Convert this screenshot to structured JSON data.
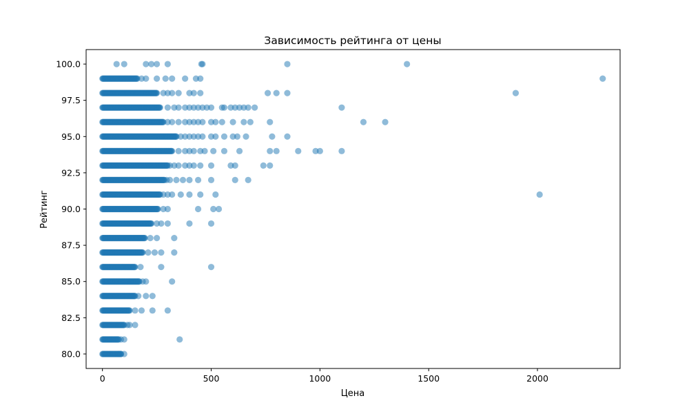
{
  "chart_data": {
    "type": "scatter",
    "title": "Зависимость рейтинга от цены",
    "xlabel": "Цена",
    "ylabel": "Рейтинг",
    "xlim": [
      -75,
      2380
    ],
    "ylim": [
      79.0,
      101.0
    ],
    "xticks": [
      0,
      500,
      1000,
      1500,
      2000
    ],
    "yticks": [
      80.0,
      82.5,
      85.0,
      87.5,
      90.0,
      92.5,
      95.0,
      97.5,
      100.0
    ],
    "grid": false,
    "legend": "none",
    "marker_color": "#1f77b4",
    "marker_alpha": 0.5,
    "bands": [
      {
        "y": 80,
        "max_price": 85
      },
      {
        "y": 81,
        "max_price": 75
      },
      {
        "y": 82,
        "max_price": 100
      },
      {
        "y": 83,
        "max_price": 125
      },
      {
        "y": 84,
        "max_price": 150
      },
      {
        "y": 85,
        "max_price": 170
      },
      {
        "y": 86,
        "max_price": 150
      },
      {
        "y": 87,
        "max_price": 185
      },
      {
        "y": 88,
        "max_price": 195
      },
      {
        "y": 89,
        "max_price": 225
      },
      {
        "y": 90,
        "max_price": 255
      },
      {
        "y": 91,
        "max_price": 265
      },
      {
        "y": 92,
        "max_price": 285
      },
      {
        "y": 93,
        "max_price": 300
      },
      {
        "y": 94,
        "max_price": 320
      },
      {
        "y": 95,
        "max_price": 340
      },
      {
        "y": 96,
        "max_price": 280
      },
      {
        "y": 97,
        "max_price": 265
      },
      {
        "y": 98,
        "max_price": 250
      },
      {
        "y": 99,
        "max_price": 160
      },
      {
        "y": 100,
        "max_price": 0
      }
    ],
    "points": [
      {
        "x": 1400,
        "y": 100
      },
      {
        "x": 850,
        "y": 100
      },
      {
        "x": 460,
        "y": 100
      },
      {
        "x": 455,
        "y": 100
      },
      {
        "x": 300,
        "y": 100
      },
      {
        "x": 250,
        "y": 100
      },
      {
        "x": 225,
        "y": 100
      },
      {
        "x": 200,
        "y": 100
      },
      {
        "x": 100,
        "y": 100
      },
      {
        "x": 65,
        "y": 100
      },
      {
        "x": 2300,
        "y": 99
      },
      {
        "x": 450,
        "y": 99
      },
      {
        "x": 430,
        "y": 99
      },
      {
        "x": 380,
        "y": 99
      },
      {
        "x": 320,
        "y": 99
      },
      {
        "x": 290,
        "y": 99
      },
      {
        "x": 250,
        "y": 99
      },
      {
        "x": 200,
        "y": 99
      },
      {
        "x": 180,
        "y": 99
      },
      {
        "x": 1900,
        "y": 98
      },
      {
        "x": 850,
        "y": 98
      },
      {
        "x": 800,
        "y": 98
      },
      {
        "x": 760,
        "y": 98
      },
      {
        "x": 450,
        "y": 98
      },
      {
        "x": 420,
        "y": 98
      },
      {
        "x": 400,
        "y": 98
      },
      {
        "x": 350,
        "y": 98
      },
      {
        "x": 320,
        "y": 98
      },
      {
        "x": 300,
        "y": 98
      },
      {
        "x": 280,
        "y": 98
      },
      {
        "x": 1100,
        "y": 97
      },
      {
        "x": 700,
        "y": 97
      },
      {
        "x": 670,
        "y": 97
      },
      {
        "x": 650,
        "y": 97
      },
      {
        "x": 630,
        "y": 97
      },
      {
        "x": 610,
        "y": 97
      },
      {
        "x": 590,
        "y": 97
      },
      {
        "x": 560,
        "y": 97
      },
      {
        "x": 550,
        "y": 97
      },
      {
        "x": 500,
        "y": 97
      },
      {
        "x": 480,
        "y": 97
      },
      {
        "x": 460,
        "y": 97
      },
      {
        "x": 440,
        "y": 97
      },
      {
        "x": 420,
        "y": 97
      },
      {
        "x": 400,
        "y": 97
      },
      {
        "x": 380,
        "y": 97
      },
      {
        "x": 350,
        "y": 97
      },
      {
        "x": 330,
        "y": 97
      },
      {
        "x": 300,
        "y": 97
      },
      {
        "x": 1300,
        "y": 96
      },
      {
        "x": 1200,
        "y": 96
      },
      {
        "x": 770,
        "y": 96
      },
      {
        "x": 680,
        "y": 96
      },
      {
        "x": 650,
        "y": 96
      },
      {
        "x": 600,
        "y": 96
      },
      {
        "x": 550,
        "y": 96
      },
      {
        "x": 520,
        "y": 96
      },
      {
        "x": 500,
        "y": 96
      },
      {
        "x": 460,
        "y": 96
      },
      {
        "x": 440,
        "y": 96
      },
      {
        "x": 420,
        "y": 96
      },
      {
        "x": 400,
        "y": 96
      },
      {
        "x": 380,
        "y": 96
      },
      {
        "x": 350,
        "y": 96
      },
      {
        "x": 320,
        "y": 96
      },
      {
        "x": 300,
        "y": 96
      },
      {
        "x": 850,
        "y": 95
      },
      {
        "x": 780,
        "y": 95
      },
      {
        "x": 660,
        "y": 95
      },
      {
        "x": 620,
        "y": 95
      },
      {
        "x": 600,
        "y": 95
      },
      {
        "x": 560,
        "y": 95
      },
      {
        "x": 520,
        "y": 95
      },
      {
        "x": 500,
        "y": 95
      },
      {
        "x": 460,
        "y": 95
      },
      {
        "x": 440,
        "y": 95
      },
      {
        "x": 420,
        "y": 95
      },
      {
        "x": 400,
        "y": 95
      },
      {
        "x": 380,
        "y": 95
      },
      {
        "x": 360,
        "y": 95
      },
      {
        "x": 1100,
        "y": 94
      },
      {
        "x": 1000,
        "y": 94
      },
      {
        "x": 980,
        "y": 94
      },
      {
        "x": 900,
        "y": 94
      },
      {
        "x": 800,
        "y": 94
      },
      {
        "x": 770,
        "y": 94
      },
      {
        "x": 630,
        "y": 94
      },
      {
        "x": 560,
        "y": 94
      },
      {
        "x": 510,
        "y": 94
      },
      {
        "x": 470,
        "y": 94
      },
      {
        "x": 450,
        "y": 94
      },
      {
        "x": 420,
        "y": 94
      },
      {
        "x": 400,
        "y": 94
      },
      {
        "x": 380,
        "y": 94
      },
      {
        "x": 350,
        "y": 94
      },
      {
        "x": 770,
        "y": 93
      },
      {
        "x": 740,
        "y": 93
      },
      {
        "x": 610,
        "y": 93
      },
      {
        "x": 590,
        "y": 93
      },
      {
        "x": 500,
        "y": 93
      },
      {
        "x": 450,
        "y": 93
      },
      {
        "x": 420,
        "y": 93
      },
      {
        "x": 400,
        "y": 93
      },
      {
        "x": 380,
        "y": 93
      },
      {
        "x": 350,
        "y": 93
      },
      {
        "x": 330,
        "y": 93
      },
      {
        "x": 310,
        "y": 93
      },
      {
        "x": 670,
        "y": 92
      },
      {
        "x": 610,
        "y": 92
      },
      {
        "x": 500,
        "y": 92
      },
      {
        "x": 440,
        "y": 92
      },
      {
        "x": 400,
        "y": 92
      },
      {
        "x": 370,
        "y": 92
      },
      {
        "x": 340,
        "y": 92
      },
      {
        "x": 310,
        "y": 92
      },
      {
        "x": 295,
        "y": 92
      },
      {
        "x": 2010,
        "y": 91
      },
      {
        "x": 520,
        "y": 91
      },
      {
        "x": 450,
        "y": 91
      },
      {
        "x": 400,
        "y": 91
      },
      {
        "x": 360,
        "y": 91
      },
      {
        "x": 320,
        "y": 91
      },
      {
        "x": 300,
        "y": 91
      },
      {
        "x": 280,
        "y": 91
      },
      {
        "x": 535,
        "y": 90
      },
      {
        "x": 510,
        "y": 90
      },
      {
        "x": 440,
        "y": 90
      },
      {
        "x": 300,
        "y": 90
      },
      {
        "x": 280,
        "y": 90
      },
      {
        "x": 500,
        "y": 89
      },
      {
        "x": 400,
        "y": 89
      },
      {
        "x": 300,
        "y": 89
      },
      {
        "x": 270,
        "y": 89
      },
      {
        "x": 250,
        "y": 89
      },
      {
        "x": 330,
        "y": 88
      },
      {
        "x": 250,
        "y": 88
      },
      {
        "x": 220,
        "y": 88
      },
      {
        "x": 330,
        "y": 87
      },
      {
        "x": 270,
        "y": 87
      },
      {
        "x": 240,
        "y": 87
      },
      {
        "x": 210,
        "y": 87
      },
      {
        "x": 500,
        "y": 86
      },
      {
        "x": 270,
        "y": 86
      },
      {
        "x": 175,
        "y": 86
      },
      {
        "x": 320,
        "y": 85
      },
      {
        "x": 200,
        "y": 85
      },
      {
        "x": 185,
        "y": 85
      },
      {
        "x": 230,
        "y": 84
      },
      {
        "x": 200,
        "y": 84
      },
      {
        "x": 165,
        "y": 84
      },
      {
        "x": 300,
        "y": 83
      },
      {
        "x": 230,
        "y": 83
      },
      {
        "x": 180,
        "y": 83
      },
      {
        "x": 150,
        "y": 83
      },
      {
        "x": 150,
        "y": 82
      },
      {
        "x": 125,
        "y": 82
      },
      {
        "x": 115,
        "y": 82
      },
      {
        "x": 355,
        "y": 81
      },
      {
        "x": 100,
        "y": 81
      },
      {
        "x": 85,
        "y": 81
      },
      {
        "x": 100,
        "y": 80
      },
      {
        "x": 85,
        "y": 80
      },
      {
        "x": 75,
        "y": 80
      }
    ]
  }
}
